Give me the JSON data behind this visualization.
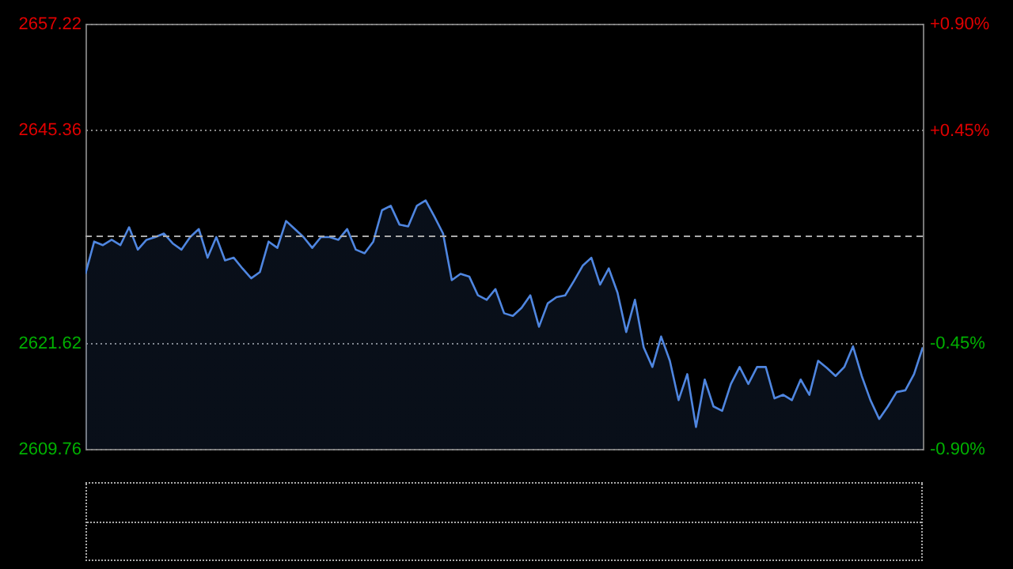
{
  "chart_data": {
    "type": "area",
    "categories": [
      null,
      null,
      null,
      null,
      null,
      null,
      null,
      null,
      null,
      null,
      null,
      null,
      null,
      null,
      null,
      null,
      null,
      null,
      null,
      null,
      null,
      null,
      null,
      null,
      null,
      null,
      null,
      null,
      null,
      null,
      null,
      null,
      null,
      null,
      null,
      null,
      null,
      null,
      null,
      null,
      null,
      null,
      null,
      null,
      null,
      null,
      null,
      null,
      null,
      null,
      null,
      null,
      null,
      null,
      null,
      null,
      null,
      null,
      null,
      null,
      null,
      null,
      null,
      null,
      null,
      null,
      null,
      null,
      null,
      null,
      null,
      null,
      null,
      null,
      null,
      null,
      null,
      null,
      null,
      null,
      null,
      null,
      null,
      null,
      null,
      null,
      null,
      null,
      null,
      null,
      null,
      null,
      null,
      null,
      null,
      null,
      null
    ],
    "series": [
      {
        "color": "#4f86e0",
        "values": [
          2629.3,
          2632.9,
          2632.5,
          2633.1,
          2632.5,
          2634.5,
          2632.0,
          2633.1,
          2633.4,
          2633.8,
          2632.7,
          2632.0,
          2633.4,
          2634.3,
          2631.1,
          2633.4,
          2630.8,
          2631.1,
          2629.9,
          2628.8,
          2629.5,
          2632.9,
          2632.2,
          2635.2,
          2634.3,
          2633.4,
          2632.2,
          2633.4,
          2633.4,
          2633.1,
          2634.3,
          2632.0,
          2631.6,
          2632.9,
          2636.4,
          2636.9,
          2634.8,
          2634.6,
          2636.9,
          2637.5,
          2635.7,
          2633.8,
          2628.6,
          2629.3,
          2629.0,
          2626.9,
          2626.4,
          2627.6,
          2624.9,
          2624.6,
          2625.5,
          2626.9,
          2623.4,
          2626.0,
          2626.7,
          2626.9,
          2628.5,
          2630.2,
          2631.1,
          2628.1,
          2629.9,
          2627.2,
          2622.8,
          2626.4,
          2621.1,
          2618.9,
          2622.3,
          2619.6,
          2615.2,
          2618.1,
          2612.2,
          2617.5,
          2614.5,
          2614.0,
          2617.0,
          2618.9,
          2617.0,
          2618.9,
          2618.9,
          2615.4,
          2615.8,
          2615.2,
          2617.5,
          2615.8,
          2619.6,
          2618.8,
          2617.9,
          2618.9,
          2621.2,
          2617.9,
          2615.2,
          2613.1,
          2614.5,
          2616.1,
          2616.3,
          2618.1,
          2621.1
        ]
      }
    ],
    "ylim": [
      2609.76,
      2657.22
    ],
    "yticks": [
      2609.76,
      2621.62,
      2645.36,
      2657.22
    ],
    "y2lim": [
      -0.9,
      0.9
    ],
    "y2ticks": [
      {
        "value": -0.9,
        "label": "-0.90%"
      },
      {
        "value": -0.45,
        "label": "-0.45%"
      },
      {
        "value": 0.45,
        "label": "+0.45%"
      },
      {
        "value": 0.9,
        "label": "+0.90%"
      }
    ],
    "ref_lines": [
      {
        "axis": "y",
        "value": 2633.49,
        "color": "#aaaaaa",
        "line_style": "dashed"
      }
    ],
    "grid": "y",
    "tick_labels": "y"
  }
}
